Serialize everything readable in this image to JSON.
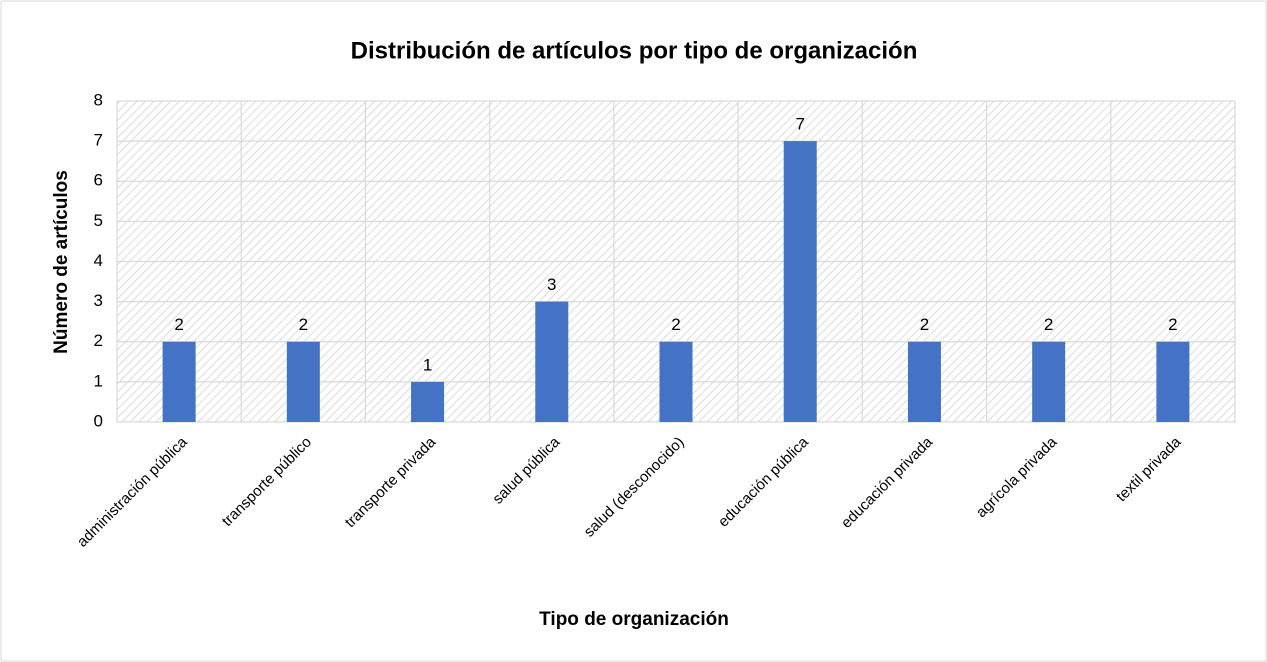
{
  "chart_data": {
    "type": "bar",
    "title": "Distribución de artículos por tipo de organización",
    "x_label": "Tipo de organización",
    "y_label": "Número de artículos",
    "categories": [
      "administración pública",
      "transporte público",
      "transporte privada",
      "salud pública",
      "salud (desconocido)",
      "educación pública",
      "educación privada",
      "agrícola privada",
      "textil privada"
    ],
    "values": [
      2,
      2,
      1,
      3,
      2,
      7,
      2,
      2,
      2
    ],
    "color": "#4472c4",
    "ylim": [
      0,
      8
    ],
    "yticks": [
      0,
      1,
      2,
      3,
      4,
      5,
      6,
      7,
      8
    ],
    "grid": true
  }
}
